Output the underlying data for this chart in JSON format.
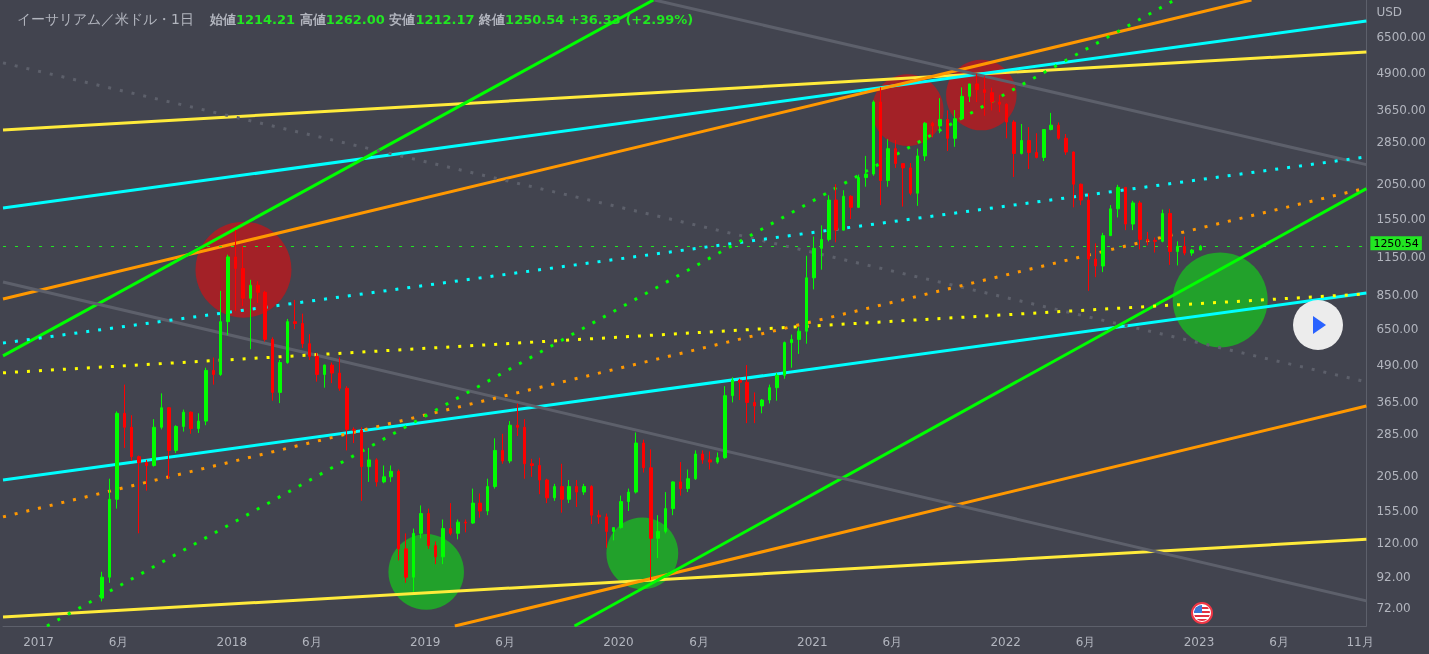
{
  "chart_data": {
    "type": "candlestick",
    "title": "イーサリアム／米ドル・1日",
    "subtitle": "始値1214.21 高値1262.00 安値1212.17 終値1250.54 +36.33 (+2.99%)",
    "ylabel": "USD",
    "log": true,
    "xlim": [
      "2016-10-26",
      "2023-11-13"
    ],
    "ylim": [
      62.6,
      8720
    ],
    "xticks": [
      {
        "value": "2017-01-01",
        "label": "2017"
      },
      {
        "value": "2017-06-01",
        "label": "6月"
      },
      {
        "value": "2018-01-01",
        "label": "2018"
      },
      {
        "value": "2018-06-01",
        "label": "6月"
      },
      {
        "value": "2019-01-01",
        "label": "2019"
      },
      {
        "value": "2019-06-01",
        "label": "6月"
      },
      {
        "value": "2020-01-01",
        "label": "2020"
      },
      {
        "value": "2020-06-01",
        "label": "6月"
      },
      {
        "value": "2021-01-01",
        "label": "2021"
      },
      {
        "value": "2021-06-01",
        "label": "6月"
      },
      {
        "value": "2022-01-01",
        "label": "2022"
      },
      {
        "value": "2022-06-01",
        "label": "6月"
      },
      {
        "value": "2023-01-01",
        "label": "2023"
      },
      {
        "value": "2023-06-01",
        "label": "6月"
      },
      {
        "value": "2023-11-01",
        "label": "11月"
      }
    ],
    "yticks": [
      {
        "value": 72,
        "label": "72.00"
      },
      {
        "value": 92,
        "label": "92.00"
      },
      {
        "value": 120,
        "label": "120.00"
      },
      {
        "value": 155,
        "label": "155.00"
      },
      {
        "value": 205,
        "label": "205.00"
      },
      {
        "value": 285,
        "label": "285.00"
      },
      {
        "value": 365,
        "label": "365.00"
      },
      {
        "value": 490,
        "label": "490.00"
      },
      {
        "value": 650,
        "label": "650.00"
      },
      {
        "value": 850,
        "label": "850.00"
      },
      {
        "value": 1150,
        "label": "1150.00"
      },
      {
        "value": 1550,
        "label": "1550.00"
      },
      {
        "value": 2050,
        "label": "2050.00"
      },
      {
        "value": 2850,
        "label": "2850.00"
      },
      {
        "value": 3650,
        "label": "3650.00"
      },
      {
        "value": 4900,
        "label": "4900.00"
      },
      {
        "value": 6500,
        "label": "6500.00"
      }
    ],
    "ref_lines": [
      {
        "axis": "y",
        "value": 1250.54,
        "label": "1250.54",
        "color": "#22e622",
        "line_style": "dotted"
      }
    ],
    "series": [
      {
        "type": "candlestick",
        "x": [
          "2017-05-01",
          "2017-05-15",
          "2017-05-29",
          "2017-06-12",
          "2017-06-26",
          "2017-07-10",
          "2017-07-24",
          "2017-08-07",
          "2017-08-21",
          "2017-09-04",
          "2017-09-18",
          "2017-10-02",
          "2017-10-16",
          "2017-10-30",
          "2017-11-13",
          "2017-11-27",
          "2017-12-11",
          "2017-12-25",
          "2018-01-08",
          "2018-01-22",
          "2018-02-05",
          "2018-02-19",
          "2018-03-05",
          "2018-03-19",
          "2018-04-02",
          "2018-04-16",
          "2018-04-30",
          "2018-05-14",
          "2018-05-28",
          "2018-06-11",
          "2018-06-25",
          "2018-07-09",
          "2018-07-23",
          "2018-08-06",
          "2018-08-20",
          "2018-09-03",
          "2018-09-17",
          "2018-10-01",
          "2018-10-15",
          "2018-10-29",
          "2018-11-12",
          "2018-11-26",
          "2018-12-10",
          "2018-12-24",
          "2019-01-07",
          "2019-01-21",
          "2019-02-04",
          "2019-02-18",
          "2019-03-04",
          "2019-03-18",
          "2019-04-01",
          "2019-04-15",
          "2019-04-29",
          "2019-05-13",
          "2019-05-27",
          "2019-06-10",
          "2019-06-24",
          "2019-07-08",
          "2019-07-22",
          "2019-08-05",
          "2019-08-19",
          "2019-09-02",
          "2019-09-16",
          "2019-09-30",
          "2019-10-14",
          "2019-10-28",
          "2019-11-11",
          "2019-11-25",
          "2019-12-09",
          "2019-12-23",
          "2020-01-06",
          "2020-01-20",
          "2020-02-03",
          "2020-02-17",
          "2020-03-02",
          "2020-03-16",
          "2020-03-30",
          "2020-04-13",
          "2020-04-27",
          "2020-05-11",
          "2020-05-25",
          "2020-06-08",
          "2020-06-22",
          "2020-07-06",
          "2020-07-20",
          "2020-08-03",
          "2020-08-17",
          "2020-08-31",
          "2020-09-14",
          "2020-09-28",
          "2020-10-12",
          "2020-10-26",
          "2020-11-09",
          "2020-11-23",
          "2020-12-07",
          "2020-12-21",
          "2021-01-04",
          "2021-01-18",
          "2021-02-01",
          "2021-02-15",
          "2021-03-01",
          "2021-03-15",
          "2021-03-29",
          "2021-04-12",
          "2021-04-26",
          "2021-05-10",
          "2021-05-24",
          "2021-06-07",
          "2021-06-21",
          "2021-07-05",
          "2021-07-19",
          "2021-08-02",
          "2021-08-16",
          "2021-08-30",
          "2021-09-13",
          "2021-09-27",
          "2021-10-11",
          "2021-10-25",
          "2021-11-08",
          "2021-11-22",
          "2021-12-06",
          "2021-12-20",
          "2022-01-03",
          "2022-01-17",
          "2022-01-31",
          "2022-02-14",
          "2022-02-28",
          "2022-03-14",
          "2022-03-28",
          "2022-04-11",
          "2022-04-25",
          "2022-05-09",
          "2022-05-23",
          "2022-06-06",
          "2022-06-20",
          "2022-07-04",
          "2022-07-18",
          "2022-08-01",
          "2022-08-15",
          "2022-08-29",
          "2022-09-12",
          "2022-09-26",
          "2022-10-10",
          "2022-10-24",
          "2022-11-07",
          "2022-11-21",
          "2022-12-05",
          "2022-12-19",
          "2023-01-04"
        ],
        "ohlc": [
          [
            78,
            96,
            76,
            92
          ],
          [
            92,
            200,
            88,
            170
          ],
          [
            170,
            340,
            158,
            335
          ],
          [
            335,
            420,
            255,
            300
          ],
          [
            300,
            330,
            230,
            238
          ],
          [
            238,
            240,
            130,
            227
          ],
          [
            227,
            232,
            182,
            222
          ],
          [
            222,
            320,
            220,
            300
          ],
          [
            300,
            392,
            295,
            350
          ],
          [
            350,
            352,
            200,
            250
          ],
          [
            250,
            305,
            245,
            302
          ],
          [
            302,
            345,
            290,
            338
          ],
          [
            338,
            340,
            285,
            297
          ],
          [
            297,
            335,
            287,
            315
          ],
          [
            315,
            480,
            305,
            470
          ],
          [
            470,
            520,
            420,
            455
          ],
          [
            455,
            880,
            450,
            690
          ],
          [
            690,
            1170,
            620,
            1150
          ],
          [
            1150,
            1422,
            750,
            1050
          ],
          [
            1050,
            1250,
            780,
            830
          ],
          [
            830,
            960,
            555,
            920
          ],
          [
            920,
            950,
            800,
            870
          ],
          [
            870,
            880,
            590,
            600
          ],
          [
            600,
            610,
            370,
            395
          ],
          [
            395,
            510,
            363,
            500
          ],
          [
            500,
            705,
            495,
            690
          ],
          [
            690,
            819,
            650,
            680
          ],
          [
            680,
            735,
            560,
            580
          ],
          [
            580,
            625,
            510,
            525
          ],
          [
            525,
            540,
            430,
            455
          ],
          [
            455,
            492,
            410,
            490
          ],
          [
            490,
            500,
            425,
            460
          ],
          [
            460,
            520,
            400,
            408
          ],
          [
            408,
            415,
            250,
            295
          ],
          [
            295,
            300,
            265,
            293
          ],
          [
            293,
            300,
            168,
            220
          ],
          [
            220,
            255,
            195,
            232
          ],
          [
            232,
            235,
            188,
            195
          ],
          [
            195,
            222,
            193,
            203
          ],
          [
            203,
            222,
            195,
            212
          ],
          [
            212,
            215,
            105,
            115
          ],
          [
            115,
            130,
            88,
            92
          ],
          [
            92,
            135,
            82,
            130
          ],
          [
            130,
            162,
            125,
            152
          ],
          [
            152,
            158,
            115,
            118
          ],
          [
            118,
            122,
            102,
            108
          ],
          [
            108,
            145,
            102,
            135
          ],
          [
            135,
            165,
            128,
            130
          ],
          [
            130,
            145,
            124,
            142
          ],
          [
            142,
            145,
            131,
            141
          ],
          [
            141,
            185,
            140,
            165
          ],
          [
            165,
            178,
            147,
            155
          ],
          [
            155,
            200,
            150,
            188
          ],
          [
            188,
            275,
            185,
            250
          ],
          [
            250,
            285,
            225,
            230
          ],
          [
            230,
            315,
            226,
            305
          ],
          [
            305,
            362,
            280,
            300
          ],
          [
            300,
            320,
            200,
            225
          ],
          [
            225,
            234,
            203,
            222
          ],
          [
            222,
            236,
            177,
            198
          ],
          [
            198,
            200,
            165,
            172
          ],
          [
            172,
            192,
            168,
            188
          ],
          [
            188,
            225,
            153,
            170
          ],
          [
            170,
            198,
            165,
            188
          ],
          [
            188,
            198,
            160,
            180
          ],
          [
            180,
            192,
            176,
            188
          ],
          [
            188,
            190,
            140,
            150
          ],
          [
            150,
            156,
            140,
            148
          ],
          [
            148,
            152,
            116,
            132
          ],
          [
            132,
            136,
            123,
            136
          ],
          [
            136,
            175,
            135,
            167
          ],
          [
            167,
            185,
            155,
            180
          ],
          [
            180,
            288,
            178,
            265
          ],
          [
            265,
            272,
            210,
            218
          ],
          [
            218,
            252,
            90,
            125
          ],
          [
            125,
            150,
            107,
            132
          ],
          [
            132,
            180,
            130,
            158
          ],
          [
            158,
            196,
            150,
            195
          ],
          [
            195,
            228,
            175,
            185
          ],
          [
            185,
            215,
            180,
            200
          ],
          [
            200,
            250,
            198,
            243
          ],
          [
            243,
            250,
            225,
            232
          ],
          [
            232,
            248,
            215,
            228
          ],
          [
            228,
            246,
            225,
            236
          ],
          [
            236,
            415,
            234,
            385
          ],
          [
            385,
            445,
            365,
            435
          ],
          [
            435,
            440,
            372,
            428
          ],
          [
            428,
            490,
            310,
            365
          ],
          [
            365,
            395,
            310,
            355
          ],
          [
            355,
            375,
            335,
            372
          ],
          [
            372,
            420,
            362,
            410
          ],
          [
            410,
            460,
            370,
            452
          ],
          [
            452,
            590,
            440,
            585
          ],
          [
            585,
            623,
            480,
            600
          ],
          [
            600,
            660,
            535,
            640
          ],
          [
            640,
            1160,
            580,
            975
          ],
          [
            975,
            1350,
            890,
            1230
          ],
          [
            1230,
            1475,
            1040,
            1320
          ],
          [
            1320,
            1870,
            1300,
            1800
          ],
          [
            1800,
            2040,
            1290,
            1420
          ],
          [
            1420,
            1945,
            1420,
            1855
          ],
          [
            1855,
            1870,
            1550,
            1700
          ],
          [
            1700,
            2200,
            1690,
            2150
          ],
          [
            2150,
            2550,
            2000,
            2210
          ],
          [
            2210,
            3950,
            2180,
            3900
          ],
          [
            3900,
            4380,
            1730,
            2100
          ],
          [
            2100,
            2910,
            2000,
            2700
          ],
          [
            2700,
            2890,
            2320,
            2400
          ],
          [
            2400,
            2400,
            1710,
            2320
          ],
          [
            2320,
            2410,
            1870,
            1900
          ],
          [
            1900,
            2700,
            1720,
            2550
          ],
          [
            2550,
            3330,
            2450,
            3300
          ],
          [
            3300,
            3340,
            2950,
            3230
          ],
          [
            3230,
            4020,
            3050,
            3400
          ],
          [
            3400,
            3650,
            2650,
            2930
          ],
          [
            2930,
            3660,
            2740,
            3420
          ],
          [
            3420,
            4380,
            3400,
            4080
          ],
          [
            4080,
            4500,
            3900,
            4500
          ],
          [
            4500,
            4870,
            3900,
            4300
          ],
          [
            4300,
            4780,
            3500,
            4200
          ],
          [
            4200,
            4370,
            3650,
            3900
          ],
          [
            3900,
            4130,
            3600,
            3830
          ],
          [
            3830,
            3860,
            2930,
            3330
          ],
          [
            3330,
            3380,
            2160,
            2600
          ],
          [
            2600,
            3280,
            2580,
            2880
          ],
          [
            2880,
            3200,
            2300,
            2620
          ],
          [
            2620,
            3050,
            2500,
            2520
          ],
          [
            2520,
            3150,
            2450,
            3140
          ],
          [
            3140,
            3580,
            3120,
            3250
          ],
          [
            3250,
            3320,
            2900,
            2930
          ],
          [
            2930,
            3030,
            2570,
            2630
          ],
          [
            2630,
            2640,
            1700,
            2040
          ],
          [
            2040,
            2050,
            1730,
            1800
          ],
          [
            1800,
            1900,
            880,
            1130
          ],
          [
            1130,
            1280,
            980,
            1070
          ],
          [
            1070,
            1390,
            1020,
            1360
          ],
          [
            1360,
            1730,
            1360,
            1680
          ],
          [
            1680,
            2030,
            1570,
            1990
          ],
          [
            1990,
            1990,
            1420,
            1490
          ],
          [
            1490,
            1790,
            1420,
            1760
          ],
          [
            1760,
            1790,
            1220,
            1320
          ],
          [
            1320,
            1400,
            1260,
            1310
          ],
          [
            1310,
            1340,
            1190,
            1300
          ],
          [
            1300,
            1670,
            1290,
            1620
          ],
          [
            1620,
            1680,
            1080,
            1200
          ],
          [
            1200,
            1300,
            1075,
            1250
          ],
          [
            1250,
            1350,
            1165,
            1185
          ],
          [
            1185,
            1225,
            1160,
            1214
          ],
          [
            1214.21,
            1262.0,
            1212.17,
            1250.54
          ]
        ],
        "colors": [
          "#00ff00",
          "#00ff00",
          "#00ff00",
          "#ff0000",
          "#ff0000",
          "#ff0000",
          "#ff0000",
          "#00ff00",
          "#00ff00",
          "#ff0000",
          "#00ff00",
          "#00ff00",
          "#ff0000",
          "#00ff00",
          "#00ff00",
          "#ff0000",
          "#00ff00",
          "#00ff00",
          "#ff0000",
          "#ff0000",
          "#00ff00",
          "#ff0000",
          "#ff0000",
          "#ff0000",
          "#00ff00",
          "#00ff00",
          "#ff0000",
          "#ff0000",
          "#ff0000",
          "#ff0000",
          "#00ff00",
          "#ff0000",
          "#ff0000",
          "#ff0000",
          "#ff0000",
          "#ff0000",
          "#00ff00",
          "#ff0000",
          "#00ff00",
          "#00ff00",
          "#ff0000",
          "#ff0000",
          "#00ff00",
          "#00ff00",
          "#ff0000",
          "#ff0000",
          "#00ff00",
          "#ff0000",
          "#00ff00",
          "#ff0000",
          "#00ff00",
          "#ff0000",
          "#00ff00",
          "#00ff00",
          "#ff0000",
          "#00ff00",
          "#ff0000",
          "#ff0000",
          "#ff0000",
          "#ff0000",
          "#ff0000",
          "#00ff00",
          "#ff0000",
          "#00ff00",
          "#ff0000",
          "#00ff00",
          "#ff0000",
          "#ff0000",
          "#ff0000",
          "#00ff00",
          "#00ff00",
          "#00ff00",
          "#00ff00",
          "#ff0000",
          "#ff0000",
          "#00ff00",
          "#00ff00",
          "#00ff00",
          "#ff0000",
          "#00ff00",
          "#00ff00",
          "#ff0000",
          "#ff0000",
          "#00ff00",
          "#00ff00",
          "#00ff00",
          "#ff0000",
          "#ff0000",
          "#ff0000",
          "#00ff00",
          "#00ff00",
          "#00ff00",
          "#00ff00",
          "#00ff00",
          "#00ff00",
          "#00ff00",
          "#00ff00",
          "#00ff00",
          "#00ff00",
          "#ff0000",
          "#00ff00",
          "#ff0000",
          "#00ff00",
          "#00ff00",
          "#00ff00",
          "#ff0000",
          "#00ff00",
          "#ff0000",
          "#ff0000",
          "#ff0000",
          "#00ff00",
          "#00ff00",
          "#ff0000",
          "#00ff00",
          "#ff0000",
          "#00ff00",
          "#00ff00",
          "#00ff00",
          "#ff0000",
          "#ff0000",
          "#ff0000",
          "#ff0000",
          "#ff0000",
          "#ff0000",
          "#00ff00",
          "#ff0000",
          "#ff0000",
          "#00ff00",
          "#00ff00",
          "#ff0000",
          "#ff0000",
          "#ff0000",
          "#ff0000",
          "#ff0000",
          "#ff0000",
          "#00ff00",
          "#00ff00",
          "#00ff00",
          "#ff0000",
          "#00ff00",
          "#ff0000",
          "#ff0000",
          "#ff0000",
          "#00ff00",
          "#ff0000",
          "#00ff00",
          "#ff0000",
          "#00ff00",
          "#00ff00"
        ]
      },
      {
        "type": "line",
        "x": [
          "2016-10-26",
          "2023-11-13"
        ],
        "values": [
          3130,
          5790
        ],
        "color": "#ffeb3b",
        "line_style": "solid"
      },
      {
        "type": "line",
        "x": [
          "2016-10-26",
          "2023-11-13"
        ],
        "values": [
          67.2,
          124
        ],
        "color": "#ffeb3b",
        "line_style": "solid"
      },
      {
        "type": "line",
        "x": [
          "2016-10-26",
          "2023-11-13"
        ],
        "values": [
          1690,
          7390
        ],
        "color": "#00ffff",
        "line_style": "solid"
      },
      {
        "type": "line",
        "x": [
          "2016-10-26",
          "2023-11-13"
        ],
        "values": [
          198,
          865
        ],
        "color": "#00ffff",
        "line_style": "solid"
      },
      {
        "type": "line",
        "x": [
          "2016-10-26",
          "2023-04-10"
        ],
        "values": [
          825,
          8720
        ],
        "color": "#ff9800",
        "line_style": "solid"
      },
      {
        "type": "line",
        "x": [
          "2019-02-26",
          "2023-11-13"
        ],
        "values": [
          62.6,
          355
        ],
        "color": "#ff9800",
        "line_style": "solid"
      },
      {
        "type": "line",
        "x": [
          "2016-10-26",
          "2020-03-07"
        ],
        "values": [
          527,
          8720
        ],
        "color": "#00ff00",
        "line_style": "solid"
      },
      {
        "type": "line",
        "x": [
          "2019-10-10",
          "2023-11-13"
        ],
        "values": [
          62.6,
          1970
        ],
        "color": "#00ff00",
        "line_style": "solid"
      },
      {
        "type": "line",
        "x": [
          "2020-03-09",
          "2023-11-13"
        ],
        "values": [
          8720,
          2380
        ],
        "color": "#5d606b",
        "line_style": "solid"
      },
      {
        "type": "line",
        "x": [
          "2016-10-26",
          "2023-11-13"
        ],
        "values": [
          944,
          76.3
        ],
        "color": "#5d606b",
        "line_style": "solid"
      },
      {
        "type": "line",
        "x": [
          "2016-10-26",
          "2023-11-13"
        ],
        "values": [
          5310,
          429
        ],
        "color": "#5d606b",
        "line_style": "dotted"
      },
      {
        "type": "line",
        "x": [
          "2016-10-26",
          "2023-11-13"
        ],
        "values": [
          583,
          2530
        ],
        "color": "#00ffff",
        "line_style": "dotted"
      },
      {
        "type": "line",
        "x": [
          "2016-10-26",
          "2023-11-13"
        ],
        "values": [
          461,
          859
        ],
        "color": "#ffff00",
        "line_style": "dotted"
      },
      {
        "type": "line",
        "x": [
          "2016-10-26",
          "2023-11-13"
        ],
        "values": [
          148,
          1980
        ],
        "color": "#ff9800",
        "line_style": "dotted"
      },
      {
        "type": "line",
        "x": [
          "2017-01-17",
          "2022-11-16"
        ],
        "values": [
          62.6,
          8720
        ],
        "color": "#00ff00",
        "line_style": "dotted"
      },
      {
        "type": "bubble",
        "x": [
          "2018-01-23",
          "2021-06-30",
          "2021-11-16"
        ],
        "values": [
          1040,
          3660,
          4120
        ],
        "sizes": [
          1,
          0.56,
          0.54
        ],
        "color": "#a32127"
      },
      {
        "type": "bubble",
        "x": [
          "2019-01-03",
          "2020-02-15",
          "2023-02-10"
        ],
        "values": [
          95.9,
          111,
          819
        ],
        "sizes": [
          0.62,
          0.56,
          0.98
        ],
        "color": "#22a12b"
      }
    ]
  }
}
